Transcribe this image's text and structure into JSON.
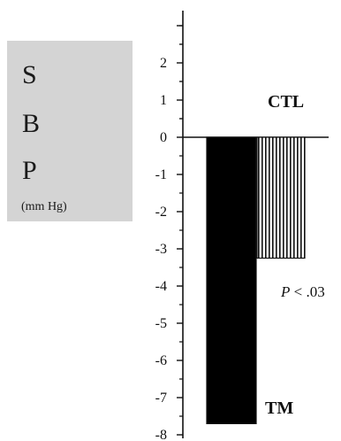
{
  "chart_data": {
    "type": "bar",
    "ylabel_letters": [
      "S",
      "B",
      "P"
    ],
    "ylabel_unit": "(mm Hg)",
    "ylim": [
      -8,
      3
    ],
    "yticks": [
      2,
      1,
      0,
      -1,
      -2,
      -3,
      -4,
      -5,
      -6,
      -7,
      -8
    ],
    "ytick_labels": [
      "2",
      "1",
      "0",
      "-1",
      "-2",
      "-3",
      "-4",
      "-5",
      "-6",
      "-7",
      "-8"
    ],
    "grid": false,
    "series": [
      {
        "name": "TM",
        "value": -7.7,
        "pattern": "solid",
        "color": "#000000"
      },
      {
        "name": "CTL",
        "value": -3.25,
        "pattern": "vertical-stripes",
        "color": "#111111"
      }
    ],
    "annotation": {
      "p_letter": "P",
      "p_rest": " < .03"
    }
  }
}
